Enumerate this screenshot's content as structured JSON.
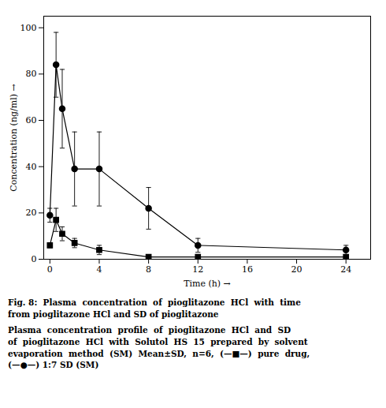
{
  "chart_data": {
    "type": "line",
    "x": [
      0,
      0.5,
      1,
      2,
      4,
      8,
      12,
      24
    ],
    "series": [
      {
        "color": "#000000",
        "marker": "circle",
        "line_style": "solid",
        "values": [
          19,
          84,
          65,
          39,
          39,
          22,
          6,
          4
        ],
        "yerr": [
          3,
          14,
          17,
          16,
          16,
          9,
          3,
          2
        ]
      },
      {
        "color": "#000000",
        "marker": "square",
        "line_style": "solid",
        "values": [
          6,
          17,
          11,
          7,
          4,
          1,
          1,
          1
        ],
        "yerr": [
          1,
          5,
          3,
          2,
          2,
          1,
          0.5,
          0.5
        ]
      }
    ],
    "xlabel": "Time (h)",
    "ylabel": "Concentration (ng/ml)",
    "xlim": [
      -0.5,
      26
    ],
    "ylim": [
      0,
      105
    ],
    "xticks": [
      0,
      4,
      8,
      12,
      16,
      20,
      24
    ],
    "yticks": [
      0,
      20,
      40,
      60,
      80,
      100
    ],
    "grid": false,
    "annotations": [
      "Fig. 8:  Plasma  concentration  of  pioglitazone  HCl  with  time\nfrom pioglitazone HCl and SD of pioglitazone",
      "Plasma  concentration  profile  of  pioglitazone  HCl  and  SD\nof  pioglitazone  HCl  with  Solutol  HS  15  prepared  by  solvent\nevaporation  method  (SM)  Mean±SD,  n=6,  (—■—)  pure  drug,\n(—●—) 1:7 SD (SM)"
    ]
  }
}
